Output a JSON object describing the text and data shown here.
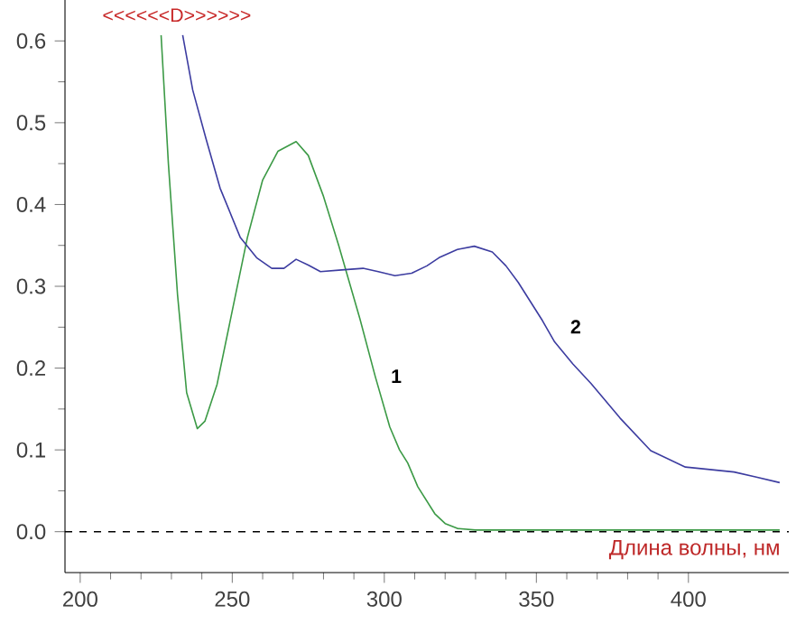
{
  "chart_data": {
    "type": "line",
    "xlabel": "Длина волны, нм",
    "ylabel": "<<<<<<D>>>>>>",
    "xlim": [
      195,
      433
    ],
    "ylim": [
      -0.05,
      0.65
    ],
    "xticks": [
      200,
      250,
      300,
      350,
      400
    ],
    "yticks": [
      {
        "value": 0,
        "label": "0.0"
      },
      0.1,
      0.2,
      0.3,
      0.4,
      0.5,
      0.6
    ],
    "series": [
      {
        "name": "1",
        "color": "#3c9a46",
        "x": [
          226.6,
          229,
          232,
          235,
          238.5,
          241,
          245,
          250,
          255,
          260,
          265,
          271,
          275,
          280,
          285,
          292,
          297,
          301.8,
          305,
          307.7,
          311,
          316.6,
          320,
          324,
          330,
          340,
          350,
          360,
          380,
          400,
          420,
          430
        ],
        "values": [
          0.607,
          0.45,
          0.29,
          0.17,
          0.126,
          0.135,
          0.18,
          0.27,
          0.36,
          0.43,
          0.465,
          0.477,
          0.46,
          0.41,
          0.35,
          0.26,
          0.19,
          0.128,
          0.1,
          0.084,
          0.055,
          0.022,
          0.01,
          0.004,
          0.002,
          0.002,
          0.002,
          0.002,
          0.002,
          0.002,
          0.002,
          0.002
        ]
      },
      {
        "name": "2",
        "color": "#3c3ca0",
        "x": [
          233.7,
          237,
          241.4,
          246,
          252.6,
          258,
          263,
          267,
          271,
          275,
          279,
          286,
          293,
          298,
          303.5,
          309,
          314,
          318,
          324,
          329.6,
          335.5,
          340,
          344,
          352,
          356,
          362,
          368,
          377.5,
          387.6,
          399,
          407,
          415,
          422,
          430
        ],
        "values": [
          0.607,
          0.54,
          0.48,
          0.42,
          0.36,
          0.335,
          0.322,
          0.322,
          0.333,
          0.326,
          0.318,
          0.32,
          0.322,
          0.318,
          0.313,
          0.316,
          0.325,
          0.335,
          0.345,
          0.349,
          0.342,
          0.325,
          0.305,
          0.258,
          0.232,
          0.205,
          0.181,
          0.139,
          0.099,
          0.079,
          0.076,
          0.073,
          0.067,
          0.06
        ]
      }
    ],
    "ref_lines": [
      {
        "axis": "y",
        "value": 0,
        "line_style": "dashed",
        "color": "#000000"
      }
    ]
  }
}
